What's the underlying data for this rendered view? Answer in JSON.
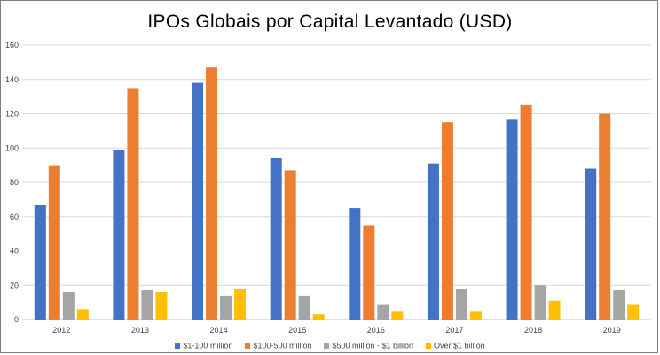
{
  "chart_data": {
    "type": "bar",
    "title": "IPOs Globais por Capital Levantado (USD)",
    "xlabel": "",
    "ylabel": "",
    "categories": [
      "2012",
      "2013",
      "2014",
      "2015",
      "2016",
      "2017",
      "2018",
      "2019"
    ],
    "series": [
      {
        "name": "$1-100 million",
        "color": "#4472c4",
        "values": [
          67,
          99,
          138,
          94,
          65,
          91,
          117,
          88
        ]
      },
      {
        "name": "$100-500 million",
        "color": "#ed7d31",
        "values": [
          90,
          135,
          147,
          87,
          55,
          115,
          125,
          120
        ]
      },
      {
        "name": "$500 million - $1 billion",
        "color": "#a5a5a5",
        "values": [
          16,
          17,
          14,
          14,
          9,
          18,
          20,
          17
        ]
      },
      {
        "name": "Over $1 billion",
        "color": "#ffc000",
        "values": [
          6,
          16,
          18,
          3,
          5,
          5,
          11,
          9
        ]
      }
    ],
    "ylim": [
      0,
      160
    ],
    "yticks": [
      0,
      20,
      40,
      60,
      80,
      100,
      120,
      140,
      160
    ],
    "grid": true,
    "legend_position": "bottom"
  }
}
